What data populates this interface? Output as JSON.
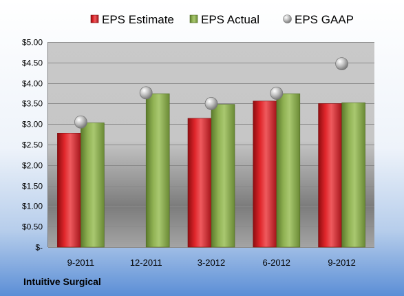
{
  "company": "Intuitive Surgical",
  "chart_data": {
    "type": "bar",
    "title": "",
    "xlabel": "",
    "ylabel": "",
    "categories": [
      "9-2011",
      "12-2011",
      "3-2012",
      "6-2012",
      "9-2012"
    ],
    "ylim": [
      0,
      5
    ],
    "yticks": [
      0,
      0.5,
      1,
      1.5,
      2,
      2.5,
      3,
      3.5,
      4,
      4.5,
      5
    ],
    "ytick_labels": [
      "$-",
      "$0.50",
      "$1.00",
      "$1.50",
      "$2.00",
      "$2.50",
      "$3.00",
      "$3.50",
      "$4.00",
      "$4.50",
      "$5.00"
    ],
    "legend_position": "top",
    "grid": true,
    "series": [
      {
        "name": "EPS Estimate",
        "kind": "bar",
        "color": "#c8191e",
        "values": [
          2.78,
          null,
          3.14,
          3.56,
          3.5
        ]
      },
      {
        "name": "EPS Actual",
        "kind": "bar",
        "color": "#86a84a",
        "values": [
          3.03,
          3.74,
          3.48,
          3.74,
          3.52
        ]
      },
      {
        "name": "EPS GAAP",
        "kind": "marker",
        "color": "#a9a9a9",
        "values": [
          3.05,
          3.76,
          3.5,
          3.75,
          4.47
        ]
      }
    ]
  }
}
